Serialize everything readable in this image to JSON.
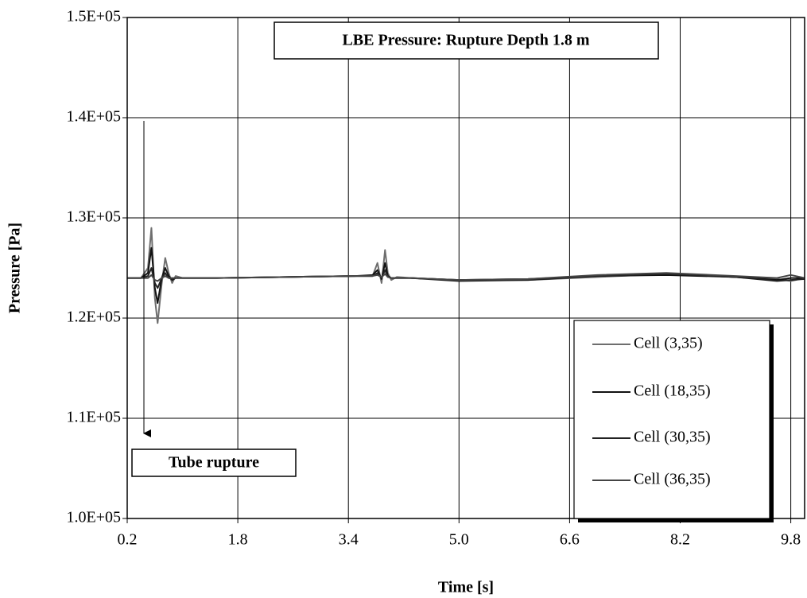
{
  "chart_data": {
    "type": "line",
    "title": "LBE Pressure: Rupture Depth 1.8 m",
    "annotation": "Tube rupture",
    "x_label": "Time [s]",
    "y_label": "Pressure [Pa]",
    "xlim": [
      0.2,
      10.0
    ],
    "ylim": [
      100000,
      150000
    ],
    "xticks": [
      0.2,
      1.8,
      3.4,
      {
        "value": 5,
        "label": "5.0"
      },
      6.6,
      8.2,
      9.8
    ],
    "yticks": [
      {
        "value": 100000,
        "label": "1.0E+05"
      },
      {
        "value": 110000,
        "label": "1.1E+05"
      },
      {
        "value": 120000,
        "label": "1.2E+05"
      },
      {
        "value": 130000,
        "label": "1.3E+05"
      },
      {
        "value": 140000,
        "label": "1.4E+05"
      },
      {
        "value": 150000,
        "label": "1.5E+05"
      }
    ],
    "grid": true,
    "legend": "lower right",
    "x": [
      0.2,
      0.4,
      0.5,
      0.55,
      0.6,
      0.64,
      0.7,
      0.75,
      0.8,
      0.85,
      0.9,
      1.0,
      1.5,
      2.5,
      3.5,
      3.75,
      3.82,
      3.88,
      3.93,
      3.97,
      4.02,
      4.1,
      4.3,
      5.0,
      6.0,
      7.0,
      8.0,
      9.0,
      9.6,
      9.8,
      10.0
    ],
    "series": [
      {
        "name": "Cell (3,35)",
        "color": "#6e6e6e",
        "values": [
          124000,
          124000,
          125000,
          129000,
          122000,
          119500,
          123500,
          126000,
          124500,
          123500,
          124200,
          124000,
          124000,
          124100,
          124200,
          124200,
          125500,
          123500,
          126800,
          124500,
          123800,
          124100,
          124000,
          123800,
          123800,
          124100,
          124400,
          124100,
          123900,
          123700,
          124000
        ]
      },
      {
        "name": "Cell (18,35)",
        "color": "#111111",
        "values": [
          124000,
          124000,
          124500,
          127000,
          123000,
          121500,
          124000,
          125000,
          124200,
          123800,
          124000,
          124000,
          124000,
          124100,
          124200,
          124300,
          124800,
          123900,
          125500,
          124200,
          124000,
          124000,
          124000,
          123800,
          123900,
          124200,
          124300,
          124100,
          123800,
          124000,
          124000
        ]
      },
      {
        "name": "Cell (30,35)",
        "color": "#222222",
        "values": [
          124000,
          124000,
          124200,
          125000,
          123500,
          123000,
          124000,
          124500,
          124000,
          123900,
          124000,
          124000,
          124000,
          124100,
          124200,
          124200,
          124500,
          124000,
          124800,
          124100,
          124000,
          124000,
          124000,
          123700,
          123800,
          124200,
          124400,
          124100,
          123700,
          123800,
          123900
        ]
      },
      {
        "name": "Cell (36,35)",
        "color": "#444444",
        "values": [
          124000,
          124000,
          124000,
          124300,
          123800,
          123700,
          124000,
          124200,
          124000,
          124000,
          124000,
          124000,
          124000,
          124100,
          124200,
          124200,
          124300,
          124100,
          124400,
          124100,
          124000,
          124000,
          124000,
          123800,
          123900,
          124300,
          124500,
          124200,
          124000,
          124300,
          124000
        ]
      }
    ]
  }
}
